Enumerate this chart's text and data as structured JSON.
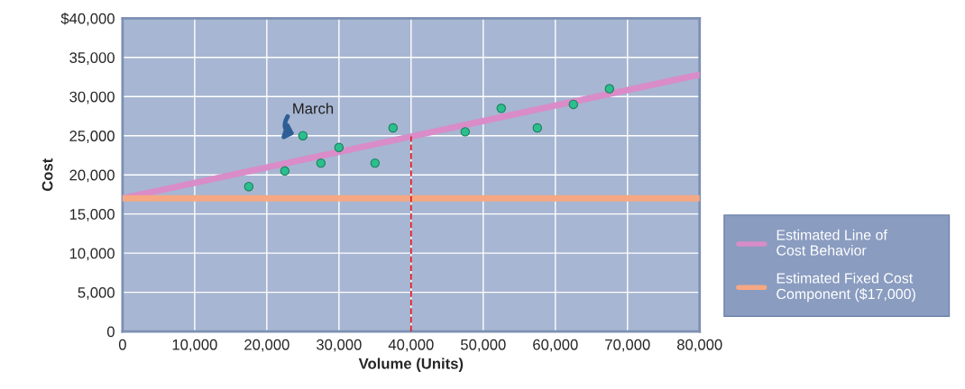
{
  "chart_data": {
    "type": "scatter",
    "xlabel": "Volume (Units)",
    "ylabel": "Cost",
    "xlim": [
      0,
      80000
    ],
    "ylim": [
      0,
      40000
    ],
    "xticks": [
      0,
      {
        "value": 10000,
        "label": "10,000"
      },
      {
        "value": 20000,
        "label": "20,000"
      },
      {
        "value": 30000,
        "label": "30,000"
      },
      {
        "value": 40000,
        "label": "40,000"
      },
      {
        "value": 50000,
        "label": "50,000"
      },
      {
        "value": 60000,
        "label": "60,000"
      },
      {
        "value": 70000,
        "label": "70,000"
      },
      {
        "value": 80000,
        "label": "80,000"
      }
    ],
    "yticks": [
      0,
      {
        "value": 5000,
        "label": "5,000"
      },
      {
        "value": 10000,
        "label": "10,000"
      },
      {
        "value": 15000,
        "label": "15,000"
      },
      {
        "value": 20000,
        "label": "20,000"
      },
      {
        "value": 25000,
        "label": "25,000"
      },
      {
        "value": 30000,
        "label": "30,000"
      },
      {
        "value": 35000,
        "label": "35,000"
      },
      {
        "value": 40000,
        "label": "$40,000"
      }
    ],
    "grid": true,
    "legend": "right",
    "series": [
      {
        "type": "line",
        "name": "Estimated Line of Cost Behavior",
        "color": "#d98cc8",
        "x": [
          0,
          80000
        ],
        "values": [
          17000,
          32800
        ]
      },
      {
        "type": "line",
        "name": "Estimated Fixed Cost Component ($17,000)",
        "color": "#f5a883",
        "x": [
          0,
          80000
        ],
        "values": [
          17000,
          17000
        ]
      },
      {
        "type": "line",
        "color": "#e0202a",
        "line_style": "dashed",
        "x": [
          40000,
          40000
        ],
        "values": [
          0,
          24900
        ]
      },
      {
        "marker": "circle",
        "color": "#2bbf8e",
        "x": [
          17500,
          22500,
          25000,
          27500,
          30000,
          35000,
          37500,
          47500,
          52500,
          57500,
          62500,
          67500
        ],
        "values": [
          18500,
          20500,
          25000,
          21500,
          23500,
          21500,
          26000,
          25500,
          28500,
          26000,
          29000,
          31000
        ]
      }
    ],
    "annotations": [
      {
        "text": "March",
        "x": 25000,
        "y": 25000
      }
    ]
  }
}
